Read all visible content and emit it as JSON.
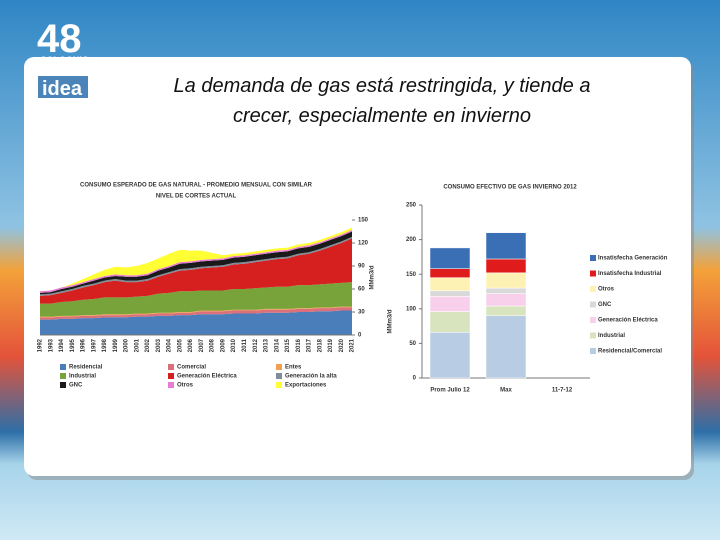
{
  "slide": {
    "logo": {
      "number": "48",
      "line1": "COLOQUIO",
      "line2": "ANUAL",
      "line3": "idea"
    },
    "title": [
      "La demanda de gas está restringida, y tiende a",
      "crecer, especialmente en invierno"
    ]
  },
  "chart_data": [
    {
      "type": "area",
      "title": [
        "CONSUMO ESPERADO DE GAS NATURAL - PROMEDIO MENSUAL CON SIMILAR",
        "NIVEL DE CORTES ACTUAL"
      ],
      "y_label": "MMm3/d",
      "ylim": [
        0,
        150
      ],
      "yticks": [
        0,
        30,
        60,
        90,
        120,
        150
      ],
      "categories": [
        "1992",
        "1993",
        "1994",
        "1995",
        "1996",
        "1997",
        "1998",
        "1999",
        "2000",
        "2001",
        "2002",
        "2003",
        "2004",
        "2005",
        "2006",
        "2007",
        "2008",
        "2009",
        "2010",
        "2011",
        "2012",
        "2013",
        "2014",
        "2015",
        "2016",
        "2017",
        "2018",
        "2019",
        "2020",
        "2021"
      ],
      "series": [
        {
          "name": "Residencial",
          "color": "#4a7ebb",
          "values": [
            20,
            20,
            21,
            21,
            22,
            22,
            23,
            23,
            23,
            24,
            24,
            25,
            25,
            26,
            26,
            27,
            27,
            27,
            28,
            28,
            28,
            29,
            29,
            29,
            30,
            30,
            31,
            31,
            32,
            32
          ]
        },
        {
          "name": "Comercial",
          "color": "#d9707a",
          "values": [
            3,
            3,
            3,
            3,
            3,
            3,
            3,
            3,
            3,
            3,
            3,
            3,
            3,
            3,
            3,
            4,
            4,
            4,
            4,
            4,
            4,
            4,
            4,
            4,
            4,
            4,
            4,
            4,
            4,
            4
          ]
        },
        {
          "name": "Entes",
          "color": "#f0a050",
          "values": [
            1,
            1,
            1,
            1,
            1,
            1,
            1,
            1,
            1,
            1,
            1,
            1,
            1,
            1,
            1,
            1,
            1,
            1,
            1,
            1,
            1,
            1,
            1,
            1,
            1,
            1,
            1,
            1,
            1,
            1
          ]
        },
        {
          "name": "Industrial",
          "color": "#77a33a",
          "values": [
            17,
            17,
            18,
            19,
            20,
            21,
            22,
            22,
            22,
            22,
            23,
            25,
            26,
            27,
            27,
            26,
            26,
            26,
            27,
            27,
            28,
            28,
            29,
            29,
            30,
            30,
            30,
            31,
            31,
            32
          ]
        },
        {
          "name": "Generación Eléctrica",
          "color": "#d62020",
          "values": [
            10,
            11,
            12,
            14,
            16,
            18,
            20,
            22,
            20,
            19,
            20,
            22,
            25,
            27,
            28,
            29,
            30,
            31,
            32,
            33,
            34,
            35,
            36,
            37,
            39,
            41,
            44,
            48,
            52,
            57
          ]
        },
        {
          "name": "Generación la alta",
          "color": "#7f8c99",
          "values": [
            2,
            2,
            2,
            2,
            2,
            2,
            2,
            2,
            2,
            2,
            2,
            2,
            2,
            2,
            2,
            2,
            2,
            2,
            2,
            2,
            2,
            2,
            2,
            2,
            2,
            2,
            2,
            2,
            2,
            2
          ]
        },
        {
          "name": "GNC",
          "color": "#1a1a1a",
          "values": [
            2,
            2,
            3,
            3,
            3,
            4,
            4,
            4,
            5,
            5,
            5,
            6,
            6,
            7,
            7,
            7,
            7,
            7,
            7,
            7,
            7,
            7,
            7,
            7,
            7,
            7,
            7,
            7,
            7,
            7
          ]
        },
        {
          "name": "Otros",
          "color": "#e87bd4",
          "values": [
            2,
            2,
            2,
            2,
            2,
            2,
            2,
            2,
            2,
            2,
            2,
            2,
            2,
            2,
            2,
            2,
            2,
            2,
            2,
            2,
            2,
            2,
            2,
            2,
            2,
            2,
            2,
            2,
            2,
            2
          ]
        },
        {
          "name": "Exportaciones",
          "color": "#ffff33",
          "values": [
            0,
            0,
            0,
            2,
            4,
            6,
            8,
            10,
            10,
            12,
            14,
            14,
            16,
            16,
            14,
            12,
            8,
            4,
            3,
            3,
            3,
            3,
            3,
            3,
            3,
            3,
            3,
            3,
            3,
            3
          ]
        }
      ]
    },
    {
      "type": "stacked_bar",
      "title": "CONSUMO EFECTIVO DE GAS INVIERNO 2012",
      "y_label": "MMm3/d",
      "ylim": [
        0,
        250
      ],
      "yticks": [
        0,
        50,
        100,
        150,
        200,
        250
      ],
      "categories": [
        "Prom Julio 12",
        "Max",
        "11-7-12"
      ],
      "series": [
        {
          "name": "Residencial/Comercial",
          "color": "#b8cce4",
          "values": [
            66,
            90,
            null
          ]
        },
        {
          "name": "Industrial",
          "color": "#d7e4bd",
          "values": [
            30,
            14,
            null
          ]
        },
        {
          "name": "Generación Eléctrica",
          "color": "#f9d0ec",
          "values": [
            22,
            18,
            null
          ]
        },
        {
          "name": "GNC",
          "color": "#d9d9d9",
          "values": [
            8,
            8,
            null
          ]
        },
        {
          "name": "Otros",
          "color": "#fdf2b3",
          "values": [
            19,
            22,
            null
          ]
        },
        {
          "name": "Insatisfecha Industrial",
          "color": "#e01b1b",
          "values": [
            13,
            20,
            null
          ]
        },
        {
          "name": "Insatisfecha Generación",
          "color": "#3b6fb5",
          "values": [
            30,
            38,
            null
          ]
        }
      ]
    }
  ]
}
